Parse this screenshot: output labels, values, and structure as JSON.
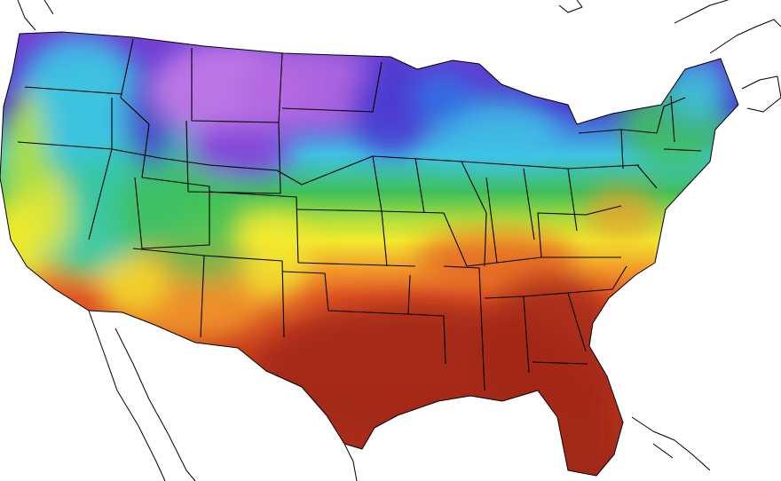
{
  "map": {
    "type": "temperature-heatmap",
    "region": "contiguous-united-states",
    "colors": {
      "background": "#ffffff",
      "violet": "#8a3fd6",
      "lavender": "#c079e6",
      "indigo": "#4b3bd0",
      "blue": "#2f74e6",
      "cyan": "#3fc3e6",
      "teal": "#35c6a6",
      "green": "#3fbf5a",
      "yellow-green": "#b6df3a",
      "yellow": "#f2ea2e",
      "orange": "#f19a2a",
      "red-orange": "#df5424",
      "red": "#c43a1c",
      "dark-red": "#a2281a",
      "borders": "#000000"
    },
    "bands": [
      {
        "name": "northern-plains",
        "color": "#8a3fd6"
      },
      {
        "name": "montana-highlands",
        "color": "#c079e6"
      },
      {
        "name": "upper-midwest",
        "color": "#4b3bd0"
      },
      {
        "name": "great-lakes",
        "color": "#3fc3e6"
      },
      {
        "name": "northeast",
        "color": "#3fbf5a"
      },
      {
        "name": "west",
        "color": "#35c6a6"
      },
      {
        "name": "central-band",
        "color": "#f2ea2e"
      },
      {
        "name": "southwest",
        "color": "#f19a2a"
      },
      {
        "name": "south",
        "color": "#c43a1c"
      },
      {
        "name": "gulf-coast",
        "color": "#a2281a"
      }
    ]
  }
}
